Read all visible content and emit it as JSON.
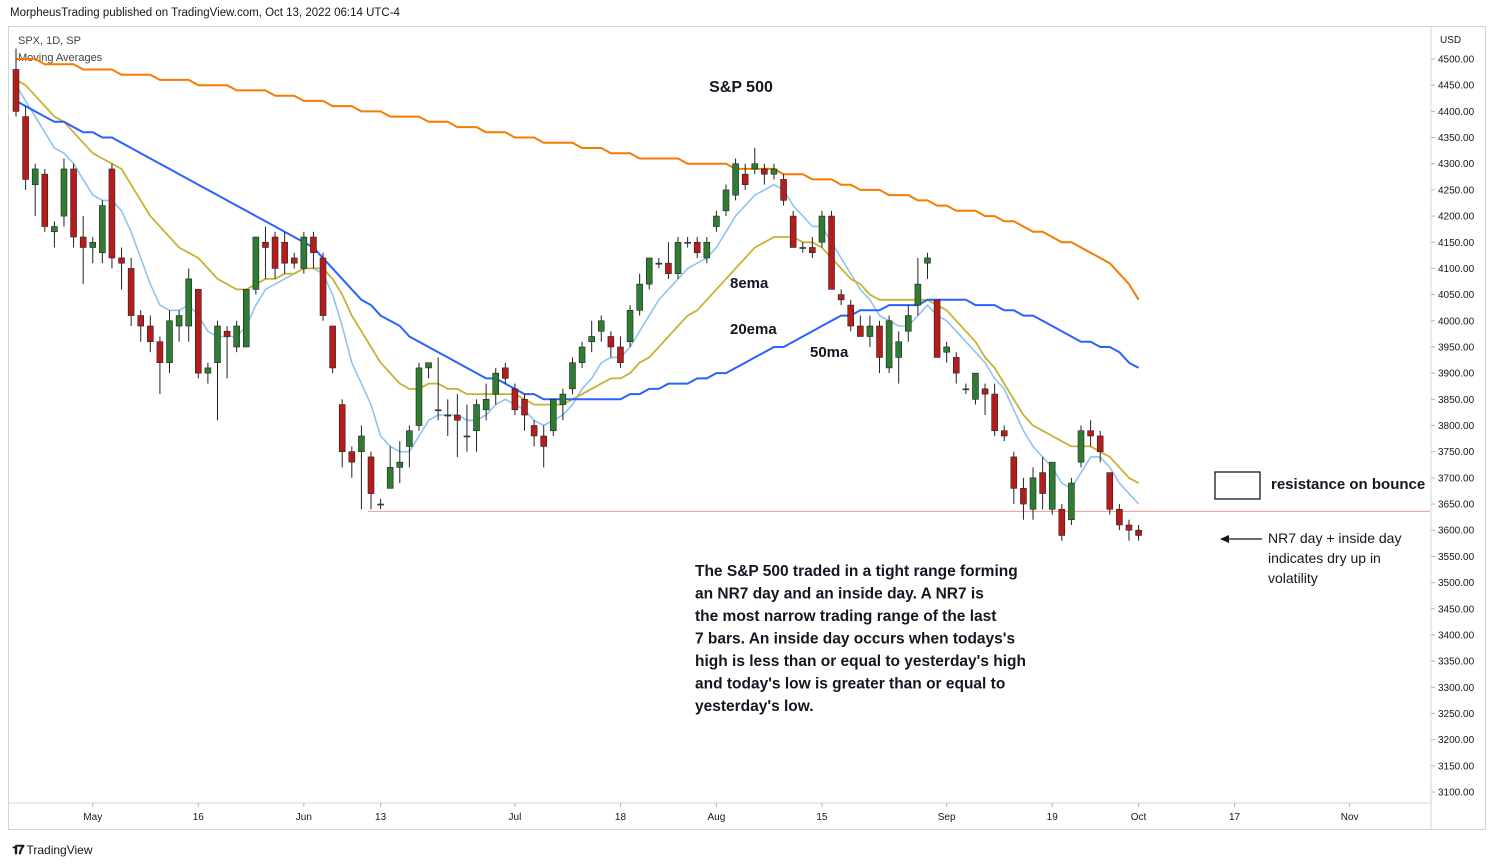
{
  "header": {
    "publish_line": "MorpheusTrading published on TradingView.com, Oct 13, 2022 06:14 UTC-4",
    "symbol_line": "SPX, 1D, SP",
    "indicator_line": "Moving Averages"
  },
  "footer": {
    "brand": "TradingView"
  },
  "colors": {
    "up": "#2e7d32",
    "down": "#b71c1c",
    "ma8": "#90c4f0",
    "ma20": "#c9b233",
    "ma50": "#2962ff",
    "ma200": "#f57c00",
    "support_line": "#ef9a9a"
  },
  "chart_data": {
    "type": "candlestick",
    "title": "S&P 500",
    "y_axis": {
      "currency": "USD",
      "ylim": [
        3060,
        4560
      ],
      "ticks": [
        4500,
        4450,
        4400,
        4350,
        4300,
        4250,
        4200,
        4150,
        4100,
        4050,
        4000,
        3950,
        3900,
        3850,
        3800,
        3750,
        3700,
        3650,
        3600,
        3550,
        3500,
        3450,
        3400,
        3350,
        3300,
        3250,
        3200,
        3150,
        3100
      ],
      "tick_labels": [
        "4500.00",
        "4450.00",
        "4400.00",
        "4350.00",
        "4300.00",
        "4250.00",
        "4200.00",
        "4150.00",
        "4100.00",
        "4050.00",
        "4000.00",
        "3950.00",
        "3900.00",
        "3850.00",
        "3800.00",
        "3750.00",
        "3700.00",
        "3650.00",
        "3600.00",
        "3550.00",
        "3500.00",
        "3450.00",
        "3400.00",
        "3350.00",
        "3300.00",
        "3250.00",
        "3200.00",
        "3150.00",
        "3100.00"
      ]
    },
    "x_axis": {
      "ticks": [
        {
          "label": "May",
          "bar": 8
        },
        {
          "label": "16",
          "bar": 19
        },
        {
          "label": "Jun",
          "bar": 30
        },
        {
          "label": "13",
          "bar": 38
        },
        {
          "label": "Jul",
          "bar": 52
        },
        {
          "label": "18",
          "bar": 63
        },
        {
          "label": "Aug",
          "bar": 73
        },
        {
          "label": "15",
          "bar": 84
        },
        {
          "label": "Sep",
          "bar": 97
        },
        {
          "label": "19",
          "bar": 108
        },
        {
          "label": "Oct",
          "bar": 117
        },
        {
          "label": "17",
          "bar": 127
        },
        {
          "label": "Nov",
          "bar": 139
        }
      ],
      "total_slots": 148
    },
    "candles": [
      [
        4480,
        4520,
        4390,
        4400
      ],
      [
        4390,
        4410,
        4250,
        4270
      ],
      [
        4260,
        4300,
        4200,
        4290
      ],
      [
        4280,
        4290,
        4170,
        4180
      ],
      [
        4170,
        4190,
        4140,
        4180
      ],
      [
        4200,
        4310,
        4180,
        4290
      ],
      [
        4290,
        4300,
        4140,
        4160
      ],
      [
        4160,
        4200,
        4070,
        4140
      ],
      [
        4140,
        4160,
        4110,
        4150
      ],
      [
        4130,
        4230,
        4110,
        4220
      ],
      [
        4290,
        4300,
        4100,
        4120
      ],
      [
        4120,
        4140,
        4060,
        4110
      ],
      [
        4100,
        4120,
        3990,
        4010
      ],
      [
        4010,
        4020,
        3960,
        3990
      ],
      [
        3990,
        4010,
        3940,
        3960
      ],
      [
        3960,
        3970,
        3860,
        3920
      ],
      [
        3920,
        4020,
        3900,
        4000
      ],
      [
        3990,
        4020,
        3960,
        4010
      ],
      [
        3990,
        4100,
        3960,
        4080
      ],
      [
        4060,
        4060,
        3890,
        3900
      ],
      [
        3900,
        3920,
        3880,
        3910
      ],
      [
        3920,
        4000,
        3810,
        3990
      ],
      [
        3980,
        3990,
        3890,
        3970
      ],
      [
        3950,
        4000,
        3940,
        3990
      ],
      [
        3950,
        4060,
        3960,
        4060
      ],
      [
        4060,
        4160,
        4050,
        4160
      ],
      [
        4150,
        4180,
        4080,
        4140
      ],
      [
        4160,
        4170,
        4080,
        4100
      ],
      [
        4150,
        4170,
        4090,
        4110
      ],
      [
        4120,
        4130,
        4100,
        4110
      ],
      [
        4100,
        4170,
        4090,
        4160
      ],
      [
        4160,
        4170,
        4100,
        4130
      ],
      [
        4120,
        4130,
        4000,
        4010
      ],
      [
        3990,
        3990,
        3900,
        3910
      ],
      [
        3840,
        3850,
        3720,
        3750
      ],
      [
        3750,
        3760,
        3700,
        3730
      ],
      [
        3750,
        3800,
        3640,
        3780
      ],
      [
        3740,
        3750,
        3640,
        3670
      ],
      [
        3650,
        3660,
        3640,
        3650
      ],
      [
        3680,
        3760,
        3680,
        3720
      ],
      [
        3720,
        3770,
        3690,
        3730
      ],
      [
        3760,
        3800,
        3720,
        3790
      ],
      [
        3800,
        3920,
        3790,
        3910
      ],
      [
        3910,
        3920,
        3890,
        3920
      ],
      [
        3830,
        3930,
        3810,
        3830
      ],
      [
        3820,
        3850,
        3780,
        3820
      ],
      [
        3820,
        3860,
        3740,
        3810
      ],
      [
        3780,
        3840,
        3750,
        3780
      ],
      [
        3790,
        3850,
        3750,
        3840
      ],
      [
        3830,
        3880,
        3810,
        3850
      ],
      [
        3860,
        3910,
        3840,
        3900
      ],
      [
        3910,
        3920,
        3880,
        3890
      ],
      [
        3870,
        3880,
        3820,
        3830
      ],
      [
        3850,
        3860,
        3790,
        3820
      ],
      [
        3800,
        3810,
        3760,
        3780
      ],
      [
        3780,
        3800,
        3720,
        3760
      ],
      [
        3790,
        3850,
        3780,
        3850
      ],
      [
        3840,
        3870,
        3810,
        3860
      ],
      [
        3870,
        3930,
        3860,
        3920
      ],
      [
        3920,
        3960,
        3910,
        3950
      ],
      [
        3960,
        4000,
        3940,
        3970
      ],
      [
        3980,
        4010,
        3960,
        4000
      ],
      [
        3970,
        3980,
        3930,
        3950
      ],
      [
        3950,
        3970,
        3910,
        3920
      ],
      [
        3960,
        4030,
        3950,
        4020
      ],
      [
        4020,
        4090,
        4010,
        4070
      ],
      [
        4070,
        4120,
        4060,
        4120
      ],
      [
        4110,
        4120,
        4100,
        4110
      ],
      [
        4110,
        4150,
        4080,
        4090
      ],
      [
        4090,
        4160,
        4080,
        4150
      ],
      [
        4150,
        4160,
        4140,
        4150
      ],
      [
        4150,
        4160,
        4120,
        4130
      ],
      [
        4120,
        4160,
        4110,
        4150
      ],
      [
        4180,
        4210,
        4170,
        4200
      ],
      [
        4210,
        4260,
        4200,
        4250
      ],
      [
        4240,
        4310,
        4230,
        4300
      ],
      [
        4280,
        4300,
        4250,
        4260
      ],
      [
        4290,
        4330,
        4280,
        4300
      ],
      [
        4290,
        4300,
        4260,
        4280
      ],
      [
        4280,
        4300,
        4270,
        4290
      ],
      [
        4270,
        4280,
        4220,
        4230
      ],
      [
        4200,
        4210,
        4140,
        4140
      ],
      [
        4140,
        4150,
        4130,
        4140
      ],
      [
        4140,
        4160,
        4120,
        4130
      ],
      [
        4150,
        4210,
        4140,
        4200
      ],
      [
        4200,
        4210,
        4060,
        4060
      ],
      [
        4050,
        4060,
        4030,
        4040
      ],
      [
        4030,
        4040,
        3980,
        3990
      ],
      [
        3990,
        4010,
        3970,
        3970
      ],
      [
        3970,
        4010,
        3950,
        3990
      ],
      [
        3990,
        4000,
        3900,
        3930
      ],
      [
        3910,
        4010,
        3900,
        4000
      ],
      [
        3930,
        3980,
        3880,
        3960
      ],
      [
        3980,
        4030,
        3960,
        4010
      ],
      [
        4030,
        4120,
        4010,
        4070
      ],
      [
        4110,
        4130,
        4080,
        4120
      ],
      [
        4040,
        4040,
        3930,
        3930
      ],
      [
        3940,
        3960,
        3920,
        3950
      ],
      [
        3930,
        3940,
        3880,
        3900
      ],
      [
        3870,
        3880,
        3860,
        3870
      ],
      [
        3850,
        3900,
        3840,
        3900
      ],
      [
        3870,
        3880,
        3820,
        3860
      ],
      [
        3860,
        3880,
        3780,
        3790
      ],
      [
        3790,
        3800,
        3770,
        3780
      ],
      [
        3740,
        3750,
        3650,
        3680
      ],
      [
        3680,
        3700,
        3620,
        3650
      ],
      [
        3640,
        3720,
        3620,
        3700
      ],
      [
        3710,
        3740,
        3640,
        3670
      ],
      [
        3640,
        3730,
        3630,
        3730
      ],
      [
        3640,
        3650,
        3580,
        3590
      ],
      [
        3620,
        3700,
        3610,
        3690
      ],
      [
        3730,
        3800,
        3720,
        3790
      ],
      [
        3790,
        3810,
        3760,
        3780
      ],
      [
        3780,
        3790,
        3730,
        3750
      ],
      [
        3710,
        3710,
        3630,
        3640
      ],
      [
        3640,
        3650,
        3600,
        3610
      ],
      [
        3610,
        3620,
        3580,
        3600
      ],
      [
        3600,
        3610,
        3580,
        3590
      ]
    ],
    "series": [
      {
        "name": "8ema",
        "start_bar": 0,
        "values": [
          4450,
          4420,
          4390,
          4360,
          4330,
          4320,
          4300,
          4270,
          4240,
          4230,
          4230,
          4210,
          4170,
          4120,
          4070,
          4030,
          4020,
          4020,
          4030,
          4010,
          3980,
          3970,
          3970,
          3970,
          3990,
          4030,
          4060,
          4070,
          4080,
          4090,
          4100,
          4100,
          4090,
          4050,
          3990,
          3920,
          3880,
          3840,
          3780,
          3760,
          3750,
          3750,
          3780,
          3810,
          3820,
          3820,
          3820,
          3810,
          3810,
          3820,
          3840,
          3850,
          3840,
          3830,
          3810,
          3800,
          3810,
          3820,
          3840,
          3870,
          3890,
          3920,
          3930,
          3930,
          3950,
          3980,
          4010,
          4040,
          4060,
          4080,
          4100,
          4110,
          4120,
          4140,
          4170,
          4200,
          4220,
          4240,
          4250,
          4260,
          4250,
          4220,
          4200,
          4180,
          4180,
          4150,
          4120,
          4090,
          4060,
          4040,
          4010,
          4000,
          3990,
          3990,
          4010,
          4030,
          4010,
          4000,
          3980,
          3960,
          3940,
          3920,
          3890,
          3870,
          3830,
          3790,
          3760,
          3740,
          3720,
          3690,
          3680,
          3710,
          3740,
          3740,
          3720,
          3690,
          3670,
          3650
        ]
      },
      {
        "name": "20ema",
        "start_bar": 0,
        "values": [
          4460,
          4450,
          4430,
          4410,
          4390,
          4380,
          4360,
          4340,
          4320,
          4310,
          4300,
          4290,
          4260,
          4230,
          4200,
          4180,
          4160,
          4140,
          4130,
          4120,
          4100,
          4080,
          4070,
          4060,
          4060,
          4070,
          4080,
          4080,
          4090,
          4090,
          4100,
          4100,
          4100,
          4080,
          4050,
          4010,
          3980,
          3950,
          3920,
          3900,
          3880,
          3870,
          3870,
          3880,
          3880,
          3870,
          3870,
          3860,
          3860,
          3860,
          3860,
          3860,
          3860,
          3850,
          3840,
          3840,
          3840,
          3840,
          3850,
          3860,
          3870,
          3880,
          3890,
          3890,
          3900,
          3920,
          3930,
          3950,
          3970,
          3990,
          4010,
          4020,
          4040,
          4060,
          4080,
          4100,
          4120,
          4140,
          4150,
          4160,
          4160,
          4160,
          4150,
          4150,
          4140,
          4120,
          4100,
          4080,
          4070,
          4050,
          4040,
          4040,
          4040,
          4040,
          4040,
          4040,
          4030,
          4020,
          4000,
          3980,
          3960,
          3930,
          3910,
          3880,
          3850,
          3820,
          3800,
          3790,
          3780,
          3770,
          3760,
          3760,
          3760,
          3750,
          3740,
          3720,
          3700,
          3690
        ]
      },
      {
        "name": "50ma",
        "start_bar": 0,
        "values": [
          4420,
          4410,
          4400,
          4390,
          4380,
          4380,
          4370,
          4360,
          4360,
          4350,
          4350,
          4340,
          4330,
          4320,
          4310,
          4300,
          4290,
          4280,
          4270,
          4260,
          4250,
          4240,
          4230,
          4220,
          4210,
          4200,
          4190,
          4180,
          4170,
          4160,
          4150,
          4140,
          4120,
          4100,
          4080,
          4060,
          4040,
          4030,
          4010,
          4000,
          3990,
          3970,
          3960,
          3950,
          3940,
          3930,
          3920,
          3910,
          3900,
          3890,
          3890,
          3880,
          3870,
          3860,
          3860,
          3850,
          3850,
          3850,
          3850,
          3850,
          3850,
          3850,
          3850,
          3850,
          3860,
          3860,
          3870,
          3870,
          3880,
          3880,
          3880,
          3890,
          3890,
          3900,
          3900,
          3910,
          3920,
          3930,
          3940,
          3950,
          3950,
          3960,
          3970,
          3980,
          3990,
          4000,
          4010,
          4010,
          4020,
          4020,
          4020,
          4030,
          4030,
          4030,
          4030,
          4040,
          4040,
          4040,
          4040,
          4040,
          4030,
          4030,
          4030,
          4020,
          4020,
          4010,
          4010,
          4000,
          3990,
          3980,
          3970,
          3960,
          3960,
          3950,
          3950,
          3940,
          3920,
          3910
        ]
      },
      {
        "name": "200ma",
        "start_bar": 0,
        "values": [
          4500,
          4500,
          4500,
          4490,
          4490,
          4490,
          4490,
          4480,
          4480,
          4480,
          4480,
          4470,
          4470,
          4470,
          4470,
          4460,
          4460,
          4460,
          4460,
          4450,
          4450,
          4450,
          4450,
          4440,
          4440,
          4440,
          4440,
          4430,
          4430,
          4430,
          4420,
          4420,
          4420,
          4410,
          4410,
          4410,
          4400,
          4400,
          4400,
          4390,
          4390,
          4390,
          4390,
          4380,
          4380,
          4380,
          4370,
          4370,
          4370,
          4360,
          4360,
          4360,
          4350,
          4350,
          4350,
          4340,
          4340,
          4340,
          4340,
          4330,
          4330,
          4330,
          4320,
          4320,
          4320,
          4310,
          4310,
          4310,
          4310,
          4310,
          4300,
          4300,
          4300,
          4300,
          4300,
          4290,
          4290,
          4290,
          4290,
          4290,
          4280,
          4280,
          4280,
          4270,
          4270,
          4270,
          4260,
          4260,
          4250,
          4250,
          4250,
          4240,
          4240,
          4240,
          4230,
          4230,
          4220,
          4220,
          4210,
          4210,
          4210,
          4200,
          4200,
          4190,
          4190,
          4180,
          4170,
          4170,
          4160,
          4150,
          4150,
          4140,
          4130,
          4120,
          4110,
          4090,
          4070,
          4040
        ]
      }
    ],
    "support_level": 3636,
    "annotations": {
      "ma8_label": "8ema",
      "ma20_label": "20ema",
      "ma50_label": "50ma",
      "resistance_label": "resistance on bounce",
      "nr7_label": [
        "NR7 day  + inside day",
        "indicates dry up in",
        "volatility"
      ],
      "body_text": [
        "The S&P 500 traded in a tight range forming",
        "an NR7 day and an inside day.  A NR7 is",
        "the most narrow trading range of the last",
        "7 bars.  An inside day occurs when todays's",
        "high is less than or equal to yesterday's high",
        "and today's low is greater than or equal to",
        "yesterday's low."
      ]
    }
  }
}
